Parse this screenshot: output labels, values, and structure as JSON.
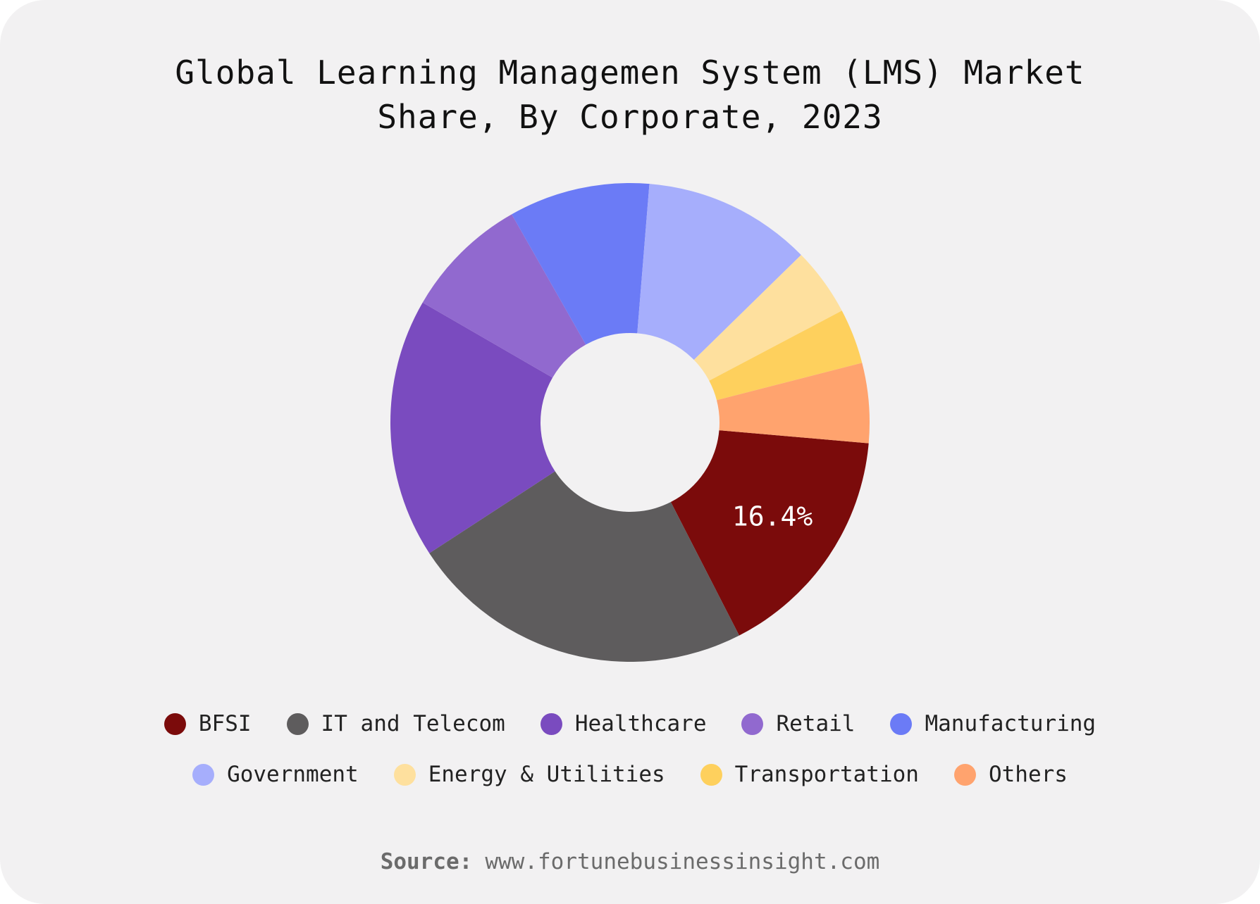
{
  "title_lines": [
    "Global Learning Managemen System (LMS) Market",
    "Share, By Corporate, 2023"
  ],
  "source": {
    "label": "Source:",
    "url": "www.fortunebusinessinsight.com"
  },
  "colors": {
    "background": "#f2f1f2",
    "slice_label": "#ffffff"
  },
  "chart_data": {
    "type": "pie",
    "donut": true,
    "title": "Global Learning Managemen System (LMS) Market Share, By Corporate, 2023",
    "unit": "%",
    "legend_position": "bottom",
    "categories": [
      "BFSI",
      "IT and Telecom",
      "Healthcare",
      "Retail",
      "Manufacturing",
      "Government",
      "Energy & Utilities",
      "Transportation",
      "Others"
    ],
    "values": [
      16.4,
      23.8,
      17.9,
      8.6,
      9.7,
      11.6,
      4.7,
      3.8,
      5.5
    ],
    "colors": [
      "#7b0b0b",
      "#5e5c5d",
      "#7a4bbf",
      "#9169cf",
      "#6b7bf6",
      "#a6aefc",
      "#fee09e",
      "#fed05d",
      "#ffa36e"
    ],
    "data_labels": [
      {
        "category": "BFSI",
        "text": "16.4%"
      }
    ]
  }
}
